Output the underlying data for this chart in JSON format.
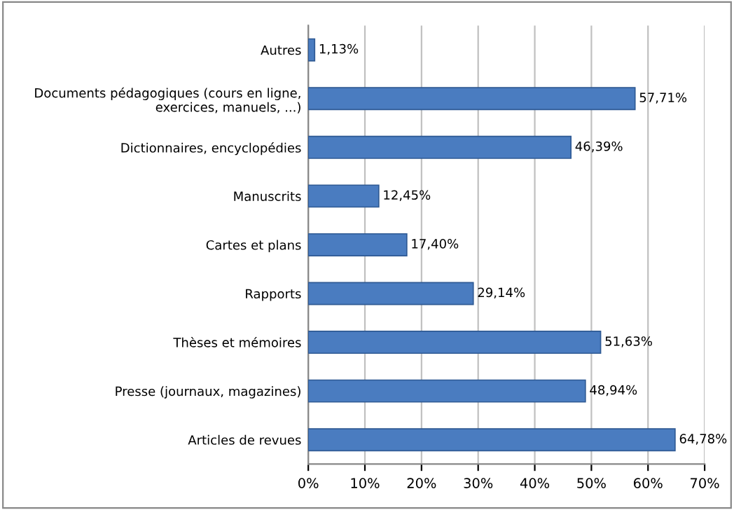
{
  "chart_data": {
    "type": "bar",
    "orientation": "horizontal",
    "categories": [
      "Autres",
      "Documents pédagogiques (cours en ligne,\nexercices, manuels, ...)",
      "Dictionnaires, encyclopédies",
      "Manuscrits",
      "Cartes et plans",
      "Rapports",
      "Thèses et mémoires",
      "Presse (journaux, magazines)",
      "Articles de revues"
    ],
    "values": [
      1.13,
      57.71,
      46.39,
      12.45,
      17.4,
      29.14,
      51.63,
      48.94,
      64.78
    ],
    "value_labels": [
      "1,13%",
      "57,71%",
      "46,39%",
      "12,45%",
      "17,40%",
      "29,14%",
      "51,63%",
      "48,94%",
      "64,78%"
    ],
    "color": "#4a7cc0",
    "xlim": [
      0,
      70
    ],
    "xticks": [
      {
        "value": 0,
        "label": "0%"
      },
      {
        "value": 10,
        "label": "10%"
      },
      {
        "value": 20,
        "label": "20%"
      },
      {
        "value": 30,
        "label": "30%"
      },
      {
        "value": 40,
        "label": "40%"
      },
      {
        "value": 50,
        "label": "50%"
      },
      {
        "value": 60,
        "label": "60%"
      },
      {
        "value": 70,
        "label": "70%"
      }
    ],
    "grid": "x"
  }
}
